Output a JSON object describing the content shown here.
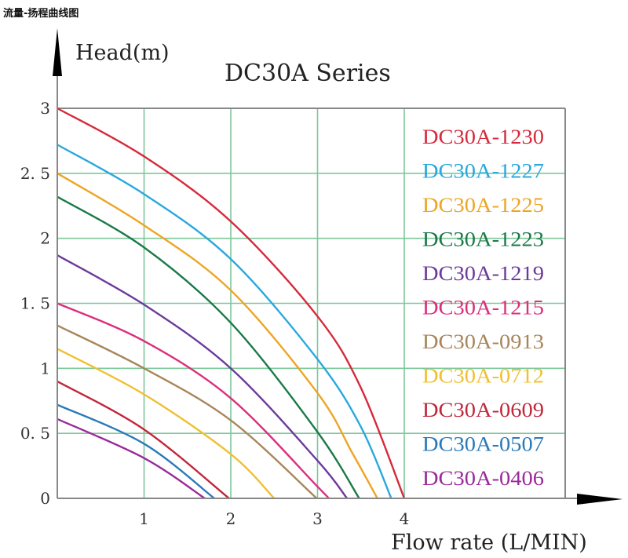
{
  "page": {
    "heading": "流量-扬程曲线图"
  },
  "chart_data": {
    "type": "line",
    "title": "DC30A Series",
    "xlabel": "Flow rate (L/MIN)",
    "ylabel": "Head(m)",
    "xlim": [
      0,
      4
    ],
    "ylim": [
      0,
      3
    ],
    "x_ticks": [
      1,
      2,
      3,
      4
    ],
    "x_tick_labels": [
      "1",
      "2",
      "3",
      "4"
    ],
    "y_ticks": [
      0,
      0.5,
      1,
      1.5,
      2,
      2.5,
      3
    ],
    "y_tick_labels": [
      "0",
      "0. 5",
      "1",
      "1. 5",
      "2",
      "2. 5",
      "3"
    ],
    "grid": true,
    "legend_position": "right",
    "series": [
      {
        "name": "DC30A-1230",
        "color": "#d62a3c",
        "points": [
          [
            0,
            3.0
          ],
          [
            1,
            2.63
          ],
          [
            2,
            2.13
          ],
          [
            3,
            1.4
          ],
          [
            3.5,
            0.85
          ],
          [
            4.0,
            0
          ]
        ]
      },
      {
        "name": "DC30A-1227",
        "color": "#2aa8de",
        "points": [
          [
            0,
            2.72
          ],
          [
            1,
            2.34
          ],
          [
            2,
            1.84
          ],
          [
            3,
            1.07
          ],
          [
            3.5,
            0.55
          ],
          [
            3.85,
            0
          ]
        ]
      },
      {
        "name": "DC30A-1225",
        "color": "#eda524",
        "points": [
          [
            0,
            2.5
          ],
          [
            1,
            2.1
          ],
          [
            2,
            1.6
          ],
          [
            3,
            0.81
          ],
          [
            3.4,
            0.35
          ],
          [
            3.69,
            0
          ]
        ]
      },
      {
        "name": "DC30A-1223",
        "color": "#1b7a48",
        "points": [
          [
            0,
            2.32
          ],
          [
            1,
            1.93
          ],
          [
            2,
            1.35
          ],
          [
            3,
            0.51
          ],
          [
            3.48,
            0
          ]
        ]
      },
      {
        "name": "DC30A-1219",
        "color": "#6b3a9c",
        "points": [
          [
            0,
            1.87
          ],
          [
            1,
            1.49
          ],
          [
            2,
            1.0
          ],
          [
            3,
            0.29
          ],
          [
            3.34,
            0
          ]
        ]
      },
      {
        "name": "DC30A-1215",
        "color": "#dc2f7c",
        "points": [
          [
            0,
            1.5
          ],
          [
            1,
            1.21
          ],
          [
            2,
            0.77
          ],
          [
            3,
            0.09
          ],
          [
            3.13,
            0
          ]
        ]
      },
      {
        "name": "DC30A-0913",
        "color": "#a8865a",
        "points": [
          [
            0,
            1.33
          ],
          [
            1,
            1.0
          ],
          [
            2,
            0.6
          ],
          [
            2.99,
            0
          ]
        ]
      },
      {
        "name": "DC30A-0712",
        "color": "#f0c030",
        "points": [
          [
            0,
            1.15
          ],
          [
            1,
            0.8
          ],
          [
            2,
            0.34
          ],
          [
            2.5,
            0
          ]
        ]
      },
      {
        "name": "DC30A-0609",
        "color": "#c0283c",
        "points": [
          [
            0,
            0.9
          ],
          [
            1,
            0.53
          ],
          [
            1.98,
            0
          ]
        ]
      },
      {
        "name": "DC30A-0507",
        "color": "#2a7ab8",
        "points": [
          [
            0,
            0.72
          ],
          [
            1,
            0.42
          ],
          [
            1.81,
            0
          ]
        ]
      },
      {
        "name": "DC30A-0406",
        "color": "#9a2a98",
        "points": [
          [
            0,
            0.61
          ],
          [
            1,
            0.31
          ],
          [
            1.7,
            0
          ]
        ]
      }
    ]
  }
}
